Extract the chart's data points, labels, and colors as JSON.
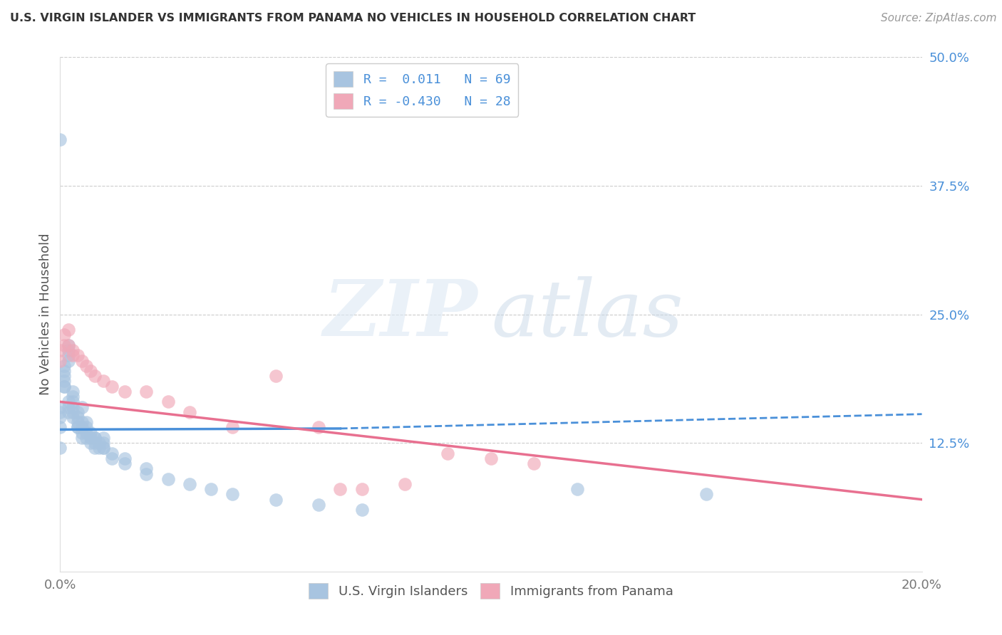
{
  "title": "U.S. VIRGIN ISLANDER VS IMMIGRANTS FROM PANAMA NO VEHICLES IN HOUSEHOLD CORRELATION CHART",
  "source": "Source: ZipAtlas.com",
  "ylabel": "No Vehicles in Household",
  "xlim": [
    0.0,
    0.2
  ],
  "ylim": [
    0.0,
    0.5
  ],
  "xticks": [
    0.0,
    0.05,
    0.1,
    0.15,
    0.2
  ],
  "xticklabels": [
    "0.0%",
    "",
    "",
    "",
    "20.0%"
  ],
  "yticks": [
    0.0,
    0.125,
    0.25,
    0.375,
    0.5
  ],
  "yticklabels": [
    "",
    "12.5%",
    "25.0%",
    "37.5%",
    "50.0%"
  ],
  "blue_color": "#a8c4e0",
  "pink_color": "#f0a8b8",
  "blue_line_color": "#4a90d9",
  "pink_line_color": "#e87090",
  "blue_scatter_x": [
    0.0,
    0.0,
    0.0,
    0.0,
    0.0,
    0.001,
    0.001,
    0.001,
    0.001,
    0.001,
    0.002,
    0.002,
    0.002,
    0.002,
    0.002,
    0.002,
    0.003,
    0.003,
    0.003,
    0.003,
    0.003,
    0.004,
    0.004,
    0.004,
    0.004,
    0.005,
    0.005,
    0.005,
    0.005,
    0.006,
    0.006,
    0.006,
    0.007,
    0.007,
    0.007,
    0.008,
    0.008,
    0.008,
    0.009,
    0.009,
    0.01,
    0.01,
    0.01,
    0.012,
    0.012,
    0.015,
    0.015,
    0.02,
    0.02,
    0.025,
    0.03,
    0.035,
    0.04,
    0.05,
    0.06,
    0.07,
    0.0,
    0.001,
    0.002,
    0.003,
    0.004,
    0.005,
    0.006,
    0.008,
    0.01,
    0.12,
    0.15
  ],
  "blue_scatter_y": [
    0.42,
    0.16,
    0.155,
    0.15,
    0.14,
    0.2,
    0.195,
    0.19,
    0.185,
    0.18,
    0.22,
    0.215,
    0.21,
    0.205,
    0.16,
    0.155,
    0.175,
    0.17,
    0.165,
    0.16,
    0.15,
    0.155,
    0.15,
    0.145,
    0.14,
    0.145,
    0.14,
    0.135,
    0.13,
    0.14,
    0.135,
    0.13,
    0.135,
    0.13,
    0.125,
    0.13,
    0.125,
    0.12,
    0.125,
    0.12,
    0.13,
    0.125,
    0.12,
    0.115,
    0.11,
    0.11,
    0.105,
    0.1,
    0.095,
    0.09,
    0.085,
    0.08,
    0.075,
    0.07,
    0.065,
    0.06,
    0.12,
    0.18,
    0.165,
    0.155,
    0.14,
    0.16,
    0.145,
    0.13,
    0.12,
    0.08,
    0.075
  ],
  "pink_scatter_x": [
    0.0,
    0.0,
    0.001,
    0.001,
    0.002,
    0.002,
    0.003,
    0.003,
    0.004,
    0.005,
    0.006,
    0.007,
    0.008,
    0.01,
    0.012,
    0.015,
    0.02,
    0.025,
    0.03,
    0.04,
    0.05,
    0.06,
    0.065,
    0.07,
    0.08,
    0.09,
    0.1,
    0.11
  ],
  "pink_scatter_y": [
    0.215,
    0.205,
    0.23,
    0.22,
    0.235,
    0.22,
    0.215,
    0.21,
    0.21,
    0.205,
    0.2,
    0.195,
    0.19,
    0.185,
    0.18,
    0.175,
    0.175,
    0.165,
    0.155,
    0.14,
    0.19,
    0.14,
    0.08,
    0.08,
    0.085,
    0.115,
    0.11,
    0.105
  ],
  "blue_trend_x": [
    0.0,
    0.065,
    0.2
  ],
  "blue_trend_y": [
    0.138,
    0.139,
    0.153
  ],
  "pink_trend_x": [
    0.0,
    0.2
  ],
  "pink_trend_y": [
    0.165,
    0.07
  ],
  "watermark_zip": "ZIP",
  "watermark_atlas": "atlas"
}
